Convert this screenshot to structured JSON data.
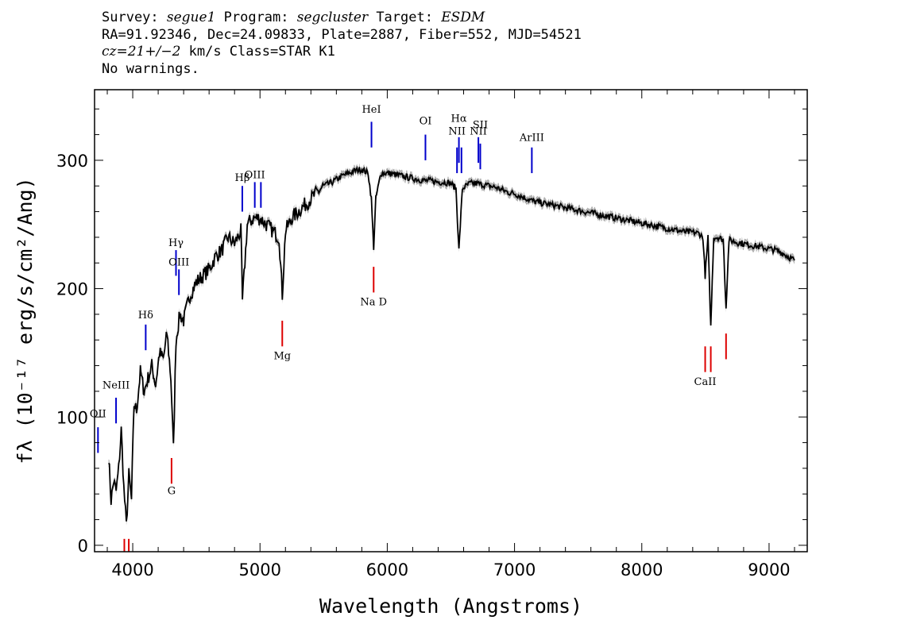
{
  "header": {
    "line1": {
      "survey_label": "Survey: ",
      "survey": "segue1",
      "program_label": " Program: ",
      "program": "segcluster",
      "target_label": " Target: ",
      "target": "ESDM"
    },
    "line2": "RA=91.92346, Dec=24.09833, Plate=2887, Fiber=552, MJD=54521",
    "line3": {
      "cz": "cz=21+/−2",
      "rest": " km/s Class=STAR K1"
    },
    "line4": "No warnings."
  },
  "chart_data": {
    "type": "line",
    "xlabel": "Wavelength (Angstroms)",
    "ylabel": "fλ (10⁻¹⁷ erg/s/cm²/Ang)",
    "xlim": [
      3700,
      9300
    ],
    "ylim": [
      -5,
      355
    ],
    "xticks": [
      4000,
      5000,
      6000,
      7000,
      8000,
      9000
    ],
    "yticks": [
      0,
      100,
      200,
      300
    ],
    "grid": false,
    "colors": {
      "flux": "#000000",
      "error_band": "#b0b0b0",
      "emission_lines": "#0000cc",
      "absorption_lines": "#dd0000"
    },
    "series": [
      {
        "points": [
          [
            3810,
            70
          ],
          [
            3830,
            35
          ],
          [
            3850,
            50
          ],
          [
            3870,
            42
          ],
          [
            3890,
            60
          ],
          [
            3910,
            90
          ],
          [
            3930,
            45
          ],
          [
            3950,
            15
          ],
          [
            3970,
            55
          ],
          [
            3990,
            35
          ],
          [
            4010,
            110
          ],
          [
            4030,
            105
          ],
          [
            4060,
            135
          ],
          [
            4090,
            120
          ],
          [
            4120,
            130
          ],
          [
            4150,
            140
          ],
          [
            4180,
            125
          ],
          [
            4210,
            150
          ],
          [
            4240,
            145
          ],
          [
            4270,
            165
          ],
          [
            4300,
            130
          ],
          [
            4320,
            75
          ],
          [
            4340,
            160
          ],
          [
            4370,
            180
          ],
          [
            4400,
            175
          ],
          [
            4450,
            195
          ],
          [
            4500,
            205
          ],
          [
            4550,
            210
          ],
          [
            4600,
            215
          ],
          [
            4650,
            225
          ],
          [
            4700,
            230
          ],
          [
            4750,
            240
          ],
          [
            4800,
            235
          ],
          [
            4850,
            245
          ],
          [
            4862,
            190
          ],
          [
            4900,
            250
          ],
          [
            4950,
            255
          ],
          [
            5000,
            255
          ],
          [
            5050,
            250
          ],
          [
            5100,
            245
          ],
          [
            5150,
            240
          ],
          [
            5175,
            195
          ],
          [
            5200,
            245
          ],
          [
            5250,
            255
          ],
          [
            5300,
            260
          ],
          [
            5350,
            265
          ],
          [
            5400,
            270
          ],
          [
            5450,
            275
          ],
          [
            5500,
            280
          ],
          [
            5550,
            282
          ],
          [
            5600,
            285
          ],
          [
            5650,
            288
          ],
          [
            5700,
            290
          ],
          [
            5750,
            292
          ],
          [
            5800,
            293
          ],
          [
            5850,
            290
          ],
          [
            5875,
            270
          ],
          [
            5893,
            232
          ],
          [
            5910,
            270
          ],
          [
            5950,
            290
          ],
          [
            6000,
            290
          ],
          [
            6050,
            289
          ],
          [
            6100,
            288
          ],
          [
            6150,
            287
          ],
          [
            6200,
            286
          ],
          [
            6250,
            285
          ],
          [
            6300,
            284
          ],
          [
            6350,
            284
          ],
          [
            6400,
            283
          ],
          [
            6450,
            283
          ],
          [
            6500,
            282
          ],
          [
            6540,
            278
          ],
          [
            6563,
            230
          ],
          [
            6590,
            278
          ],
          [
            6650,
            282
          ],
          [
            6700,
            282
          ],
          [
            6750,
            281
          ],
          [
            6800,
            280
          ],
          [
            6850,
            279
          ],
          [
            6900,
            277
          ],
          [
            6950,
            275
          ],
          [
            7000,
            274
          ],
          [
            7050,
            272
          ],
          [
            7100,
            270
          ],
          [
            7150,
            268
          ],
          [
            7200,
            267
          ],
          [
            7250,
            266
          ],
          [
            7300,
            265
          ],
          [
            7350,
            264
          ],
          [
            7400,
            263
          ],
          [
            7450,
            262
          ],
          [
            7500,
            261
          ],
          [
            7550,
            260
          ],
          [
            7600,
            259
          ],
          [
            7650,
            258
          ],
          [
            7700,
            257
          ],
          [
            7750,
            256
          ],
          [
            7800,
            255
          ],
          [
            7850,
            254
          ],
          [
            7900,
            253
          ],
          [
            7950,
            252
          ],
          [
            8000,
            251
          ],
          [
            8050,
            250
          ],
          [
            8100,
            249
          ],
          [
            8150,
            248
          ],
          [
            8200,
            247
          ],
          [
            8250,
            246
          ],
          [
            8300,
            245
          ],
          [
            8350,
            244
          ],
          [
            8400,
            244
          ],
          [
            8450,
            243
          ],
          [
            8480,
            240
          ],
          [
            8498,
            210
          ],
          [
            8520,
            240
          ],
          [
            8542,
            170
          ],
          [
            8565,
            240
          ],
          [
            8600,
            240
          ],
          [
            8640,
            238
          ],
          [
            8662,
            185
          ],
          [
            8685,
            238
          ],
          [
            8750,
            236
          ],
          [
            8800,
            235
          ],
          [
            8850,
            234
          ],
          [
            8900,
            233
          ],
          [
            8950,
            232
          ],
          [
            9000,
            231
          ],
          [
            9050,
            230
          ],
          [
            9100,
            228
          ],
          [
            9150,
            225
          ],
          [
            9200,
            222
          ]
        ]
      }
    ],
    "emission_lines": [
      {
        "label": "OII",
        "x": 3727,
        "y_bottom": 72,
        "y_top": 92,
        "label_y": 100
      },
      {
        "label": "NeIII",
        "x": 3869,
        "y_bottom": 95,
        "y_top": 115,
        "label_y": 122
      },
      {
        "label": "Hδ",
        "x": 4102,
        "y_bottom": 152,
        "y_top": 172,
        "label_y": 177
      },
      {
        "label": "Hγ",
        "x": 4340,
        "y_bottom": 210,
        "y_top": 230,
        "label_y": 233
      },
      {
        "label": "OIII",
        "x": 4363,
        "y_bottom": 195,
        "y_top": 215,
        "label_y": 218
      },
      {
        "label": "Hβ",
        "x": 4861,
        "y_bottom": 260,
        "y_top": 280,
        "label_y": 284
      },
      {
        "label": "OIII",
        "x": 4959,
        "y_bottom": 263,
        "y_top": 283,
        "label_y": 286
      },
      {
        "label": "",
        "x": 5007,
        "y_bottom": 263,
        "y_top": 283,
        "label_y": 286
      },
      {
        "label": "HeI",
        "x": 5876,
        "y_bottom": 310,
        "y_top": 330,
        "label_y": 337
      },
      {
        "label": "OI",
        "x": 6300,
        "y_bottom": 300,
        "y_top": 320,
        "label_y": 328
      },
      {
        "label": "NII",
        "x": 6548,
        "y_bottom": 290,
        "y_top": 310,
        "label_y": 320
      },
      {
        "label": "Hα",
        "x": 6563,
        "y_bottom": 298,
        "y_top": 318,
        "label_y": 330
      },
      {
        "label": "",
        "x": 6583,
        "y_bottom": 290,
        "y_top": 310,
        "label_y": 320
      },
      {
        "label": "NII",
        "x": 6716,
        "y_bottom": 298,
        "y_top": 318,
        "label_y": 320
      },
      {
        "label": "SII",
        "x": 6731,
        "y_bottom": 293,
        "y_top": 313,
        "label_y": 325
      },
      {
        "label": "ArIII",
        "x": 7136,
        "y_bottom": 290,
        "y_top": 310,
        "label_y": 315
      }
    ],
    "absorption_lines": [
      {
        "label": "",
        "x": 3934,
        "y_bottom": -5,
        "y_top": 5,
        "label_y": null
      },
      {
        "label": "",
        "x": 3969,
        "y_bottom": -5,
        "y_top": 5,
        "label_y": null
      },
      {
        "label": "G",
        "x": 4305,
        "y_bottom": 48,
        "y_top": 68,
        "label_y": 40
      },
      {
        "label": "Mg",
        "x": 5175,
        "y_bottom": 155,
        "y_top": 175,
        "label_y": 145
      },
      {
        "label": "Na D",
        "x": 5893,
        "y_bottom": 197,
        "y_top": 217,
        "label_y": 187
      },
      {
        "label": "CaII",
        "x": 8498,
        "y_bottom": 135,
        "y_top": 155,
        "label_y": 125
      },
      {
        "label": "",
        "x": 8542,
        "y_bottom": 135,
        "y_top": 155,
        "label_y": null
      },
      {
        "label": "",
        "x": 8662,
        "y_bottom": 145,
        "y_top": 165,
        "label_y": null
      }
    ]
  }
}
